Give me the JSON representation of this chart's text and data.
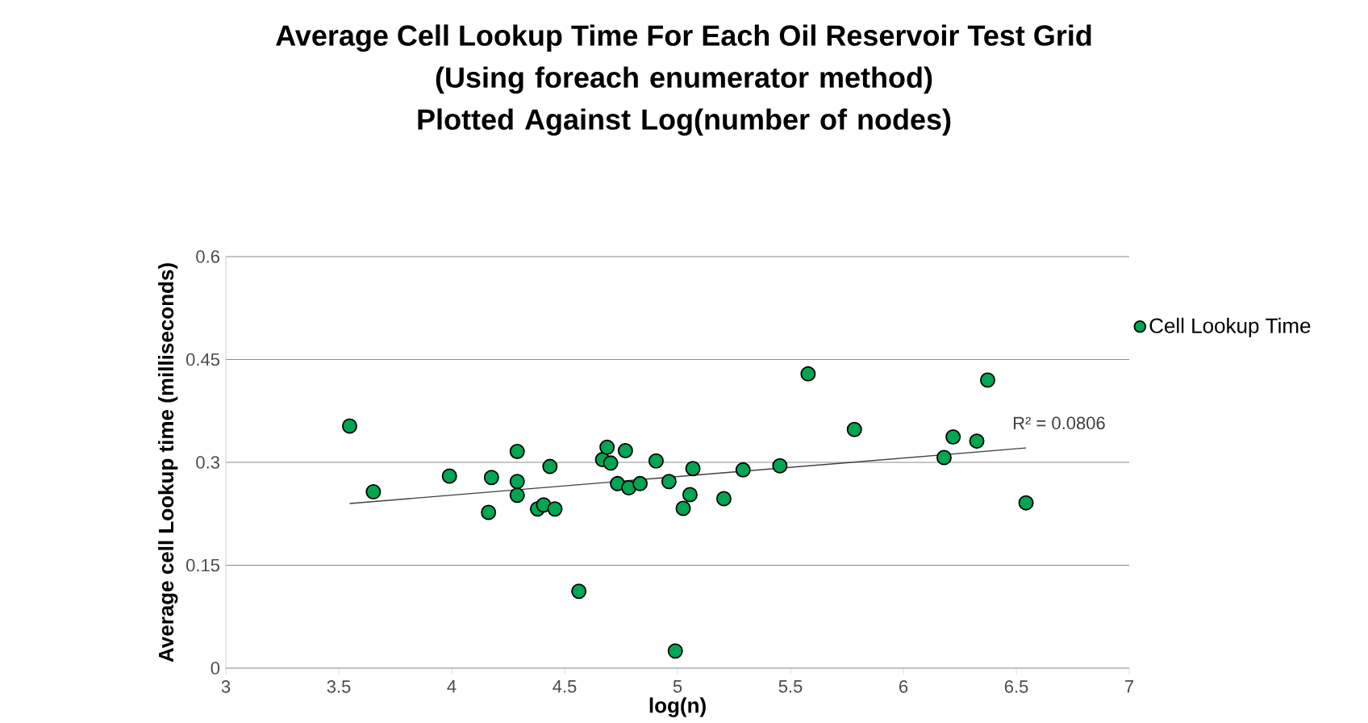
{
  "chart_data": {
    "type": "scatter",
    "title": "Average Cell Lookup Time For Each Oil Reservoir Test Grid",
    "subtitle": "(Using foreach enumerator method) Plotted Against Log(number of nodes)",
    "xlabel": "log(n)",
    "ylabel": "Average cell Lookup time (milliseconds)",
    "xlim": [
      3,
      7
    ],
    "xticks": [
      3,
      3.5,
      4,
      4.5,
      5,
      5.5,
      6,
      6.5,
      7
    ],
    "ylim": [
      0,
      0.6
    ],
    "yticks": [
      0,
      0.15,
      0.3,
      0.45,
      0.6
    ],
    "grid": "y",
    "legend": "right",
    "annotations": [
      "R² = 0.0806"
    ],
    "series": [
      {
        "name": "Cell Lookup Time",
        "color": "#00a651",
        "marker": "circle",
        "x": [
          3.548,
          3.653,
          3.99,
          4.163,
          4.176,
          4.29,
          4.29,
          4.29,
          4.435,
          4.38,
          4.407,
          4.457,
          4.563,
          4.668,
          4.688,
          4.704,
          4.769,
          4.734,
          4.784,
          4.834,
          4.905,
          4.962,
          4.99,
          5.025,
          5.055,
          5.068,
          5.205,
          5.29,
          5.453,
          5.578,
          5.783,
          6.18,
          6.22,
          6.325,
          6.373,
          6.543
        ],
        "values": [
          0.353,
          0.257,
          0.28,
          0.227,
          0.278,
          0.316,
          0.272,
          0.252,
          0.294,
          0.232,
          0.238,
          0.232,
          0.112,
          0.304,
          0.322,
          0.299,
          0.317,
          0.269,
          0.263,
          0.269,
          0.302,
          0.272,
          0.025,
          0.233,
          0.253,
          0.291,
          0.247,
          0.289,
          0.295,
          0.429,
          0.348,
          0.307,
          0.337,
          0.331,
          0.42,
          0.241
        ]
      },
      {
        "type": "line",
        "color": "#404040",
        "marker": "none",
        "x": [
          3.548,
          6.543
        ],
        "values": [
          0.24,
          0.321
        ]
      }
    ]
  }
}
